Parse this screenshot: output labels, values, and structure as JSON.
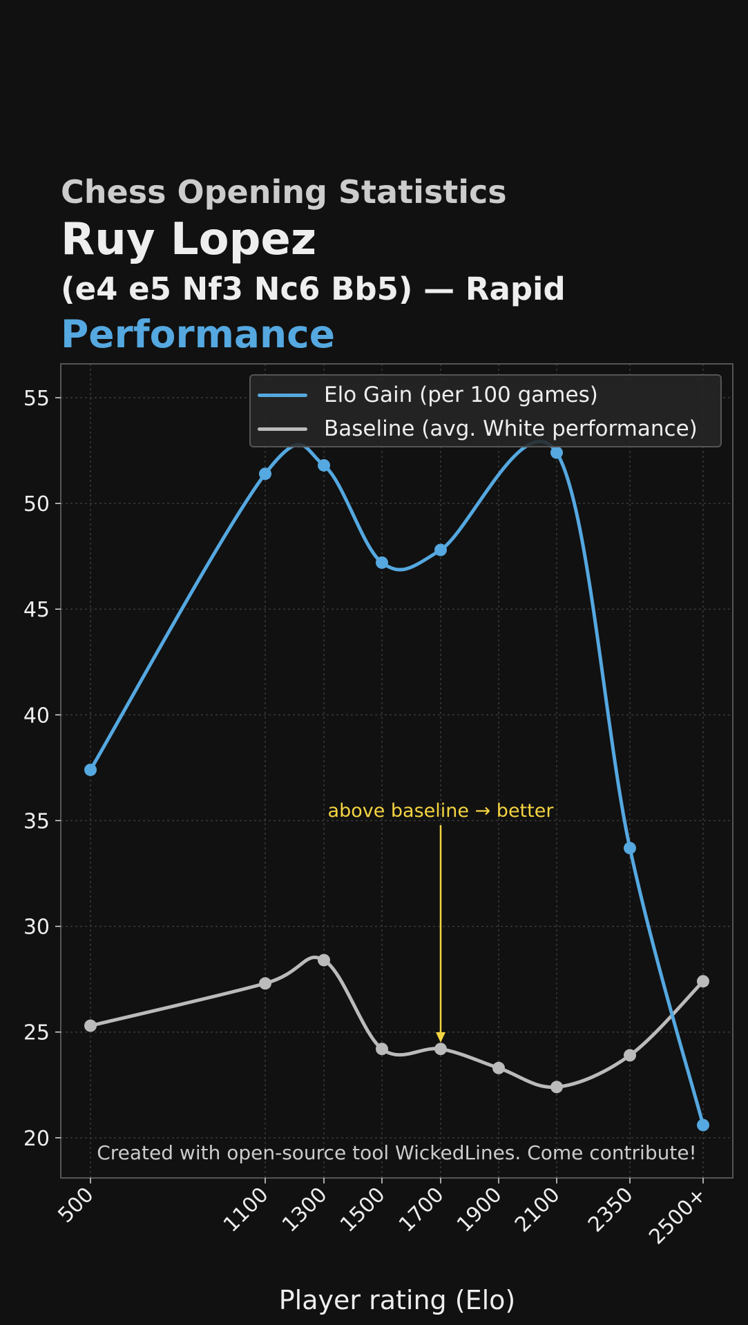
{
  "header": {
    "category": "Chess Opening Statistics",
    "opening_name": "Ruy Lopez",
    "moves_and_mode": "(e4 e5 Nf3 Nc6 Bb5) — Rapid",
    "metric": "Performance"
  },
  "chart_data": {
    "type": "line",
    "x": [
      500,
      1100,
      1300,
      1500,
      1700,
      1900,
      2100,
      2350,
      2600
    ],
    "x_tick_labels": [
      "500",
      "1100",
      "1300",
      "1500",
      "1700",
      "1900",
      "2100",
      "2350",
      "2500+"
    ],
    "xlabel": "Player rating (Elo)",
    "ylabel": "",
    "ylim": [
      18.1,
      56.6
    ],
    "y_ticks": [
      20,
      25,
      30,
      35,
      40,
      45,
      50,
      55
    ],
    "grid": true,
    "legend_position": "top-right",
    "series": [
      {
        "name": "Elo Gain (per 100 games)",
        "color": "#55a8e0",
        "x": [
          500,
          1100,
          1300,
          1500,
          1700,
          2100,
          2350,
          2600
        ],
        "values": [
          37.4,
          51.4,
          51.8,
          47.2,
          47.8,
          52.4,
          33.7,
          20.6
        ]
      },
      {
        "name": "Baseline (avg. White performance)",
        "color": "#bbbbbb",
        "x": [
          500,
          1100,
          1300,
          1500,
          1700,
          1900,
          2100,
          2350,
          2600
        ],
        "values": [
          25.3,
          27.3,
          28.4,
          24.2,
          24.2,
          23.3,
          22.4,
          23.9,
          27.4
        ]
      }
    ],
    "annotation": {
      "text": "above baseline → better",
      "x": 1700,
      "y_text": 35.5,
      "y_arrow": 24.5,
      "color": "#f5d442"
    },
    "footer": "Created with open-source tool WickedLines. Come contribute!"
  }
}
